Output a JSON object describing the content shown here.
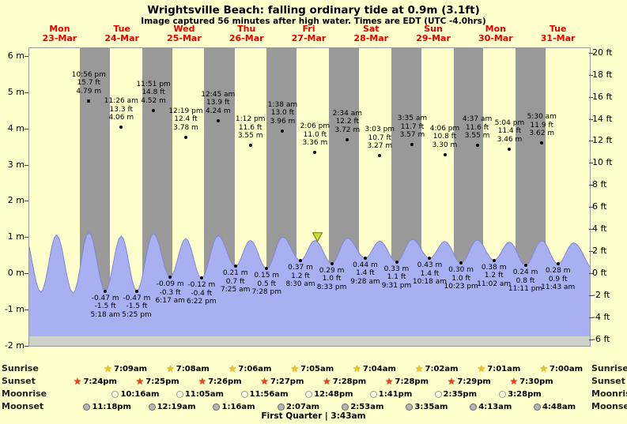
{
  "title": "Wrightsville Beach: falling  ordinary tide at 0.9m (3.1ft)",
  "subtitle": "Image captured 56 minutes after high water. Times are EDT (UTC -4.0hrs)",
  "days": [
    {
      "name": "Mon",
      "date": "23-Mar"
    },
    {
      "name": "Tue",
      "date": "24-Mar"
    },
    {
      "name": "Wed",
      "date": "25-Mar"
    },
    {
      "name": "Thu",
      "date": "26-Mar"
    },
    {
      "name": "Fri",
      "date": "27-Mar"
    },
    {
      "name": "Sat",
      "date": "28-Mar"
    },
    {
      "name": "Sun",
      "date": "29-Mar"
    },
    {
      "name": "Mon",
      "date": "30-Mar"
    },
    {
      "name": "Tue",
      "date": "31-Mar"
    }
  ],
  "axes": {
    "left_unit": "m",
    "right_unit": "ft",
    "left_ticks": [
      {
        "label": "6 m",
        "v": 6
      },
      {
        "label": "5 m",
        "v": 5
      },
      {
        "label": "4 m",
        "v": 4
      },
      {
        "label": "3 m",
        "v": 3
      },
      {
        "label": "2 m",
        "v": 2
      },
      {
        "label": "1 m",
        "v": 1
      },
      {
        "label": "0 m",
        "v": 0
      },
      {
        "label": "-1 m",
        "v": -1
      },
      {
        "label": "-2 m",
        "v": -2
      }
    ],
    "right_ticks": [
      {
        "label": "20 ft",
        "v": 20
      },
      {
        "label": "18 ft",
        "v": 18
      },
      {
        "label": "16 ft",
        "v": 16
      },
      {
        "label": "14 ft",
        "v": 14
      },
      {
        "label": "12 ft",
        "v": 12
      },
      {
        "label": "10 ft",
        "v": 10
      },
      {
        "label": "8 ft",
        "v": 8
      },
      {
        "label": "6 ft",
        "v": 6
      },
      {
        "label": "4 ft",
        "v": 4
      },
      {
        "label": "2 ft",
        "v": 2
      },
      {
        "label": "0 ft",
        "v": 0
      },
      {
        "label": "-2 ft",
        "v": -2
      },
      {
        "label": "-4 ft",
        "v": -4
      },
      {
        "label": "-6 ft",
        "v": -6
      }
    ]
  },
  "chart_data": {
    "type": "area",
    "title": "Wrightsville Beach tide curve, 23-Mar to 31-Mar",
    "ylim_m": [
      -2,
      6
    ],
    "ylim_ft": [
      -6,
      20
    ],
    "x_days": [
      "Mon 23-Mar",
      "Tue 24-Mar",
      "Wed 25-Mar",
      "Thu 26-Mar",
      "Fri 27-Mar",
      "Sat 28-Mar",
      "Sun 29-Mar",
      "Mon 30-Mar",
      "Tue 31-Mar"
    ],
    "high_tide_markers": [
      {
        "day": 0,
        "time": "10:56 pm",
        "ft": "15.7 ft",
        "m": "4.79 m",
        "v": 4.79
      },
      {
        "day": 1,
        "time": "11:26 am",
        "ft": "13.3 ft",
        "m": "4.06 m",
        "v": 4.06
      },
      {
        "day": 1,
        "time": "11:51 pm",
        "ft": "14.8 ft",
        "m": "4.52 m",
        "v": 4.52
      },
      {
        "day": 2,
        "time": "12:19 pm",
        "ft": "12.4 ft",
        "m": "3.78 m",
        "v": 3.78
      },
      {
        "day": 3,
        "time": "12:45 am",
        "ft": "13.9 ft",
        "m": "4.24 m",
        "v": 4.24
      },
      {
        "day": 3,
        "time": "1:12 pm",
        "ft": "11.6 ft",
        "m": "3.55 m",
        "v": 3.55
      },
      {
        "day": 4,
        "time": "1:38 am",
        "ft": "13.0 ft",
        "m": "3.96 m",
        "v": 3.96
      },
      {
        "day": 4,
        "time": "2:06 pm",
        "ft": "11.0 ft",
        "m": "3.36 m",
        "v": 3.36
      },
      {
        "day": 5,
        "time": "2:34 am",
        "ft": "12.2 ft",
        "m": "3.72 m",
        "v": 3.72
      },
      {
        "day": 5,
        "time": "3:03 pm",
        "ft": "10.7 ft",
        "m": "3.27 m",
        "v": 3.27
      },
      {
        "day": 6,
        "time": "3:35 am",
        "ft": "11.7 ft",
        "m": "3.57 m",
        "v": 3.57
      },
      {
        "day": 6,
        "time": "4:06 pm",
        "ft": "10.8 ft",
        "m": "3.30 m",
        "v": 3.3
      },
      {
        "day": 7,
        "time": "4:37 am",
        "ft": "11.6 ft",
        "m": "3.55 m",
        "v": 3.55
      },
      {
        "day": 7,
        "time": "5:04 pm",
        "ft": "11.4 ft",
        "m": "3.46 m",
        "v": 3.46
      },
      {
        "day": 8,
        "time": "5:30 am",
        "ft": "11.9 ft",
        "m": "3.62 m",
        "v": 3.62
      }
    ],
    "low_tide_markers": [
      {
        "day": 1,
        "m": "-0.47 m",
        "ft": "-1.5 ft",
        "time": "5:18 am",
        "v": -0.47
      },
      {
        "day": 1,
        "m": "-0.47 m",
        "ft": "-1.5 ft",
        "time": "5:25 pm",
        "v": -0.47
      },
      {
        "day": 2,
        "m": "-0.09 m",
        "ft": "-0.3 ft",
        "time": "6:17 am",
        "v": -0.09
      },
      {
        "day": 2,
        "m": "-0.12 m",
        "ft": "-0.4 ft",
        "time": "6:22 pm",
        "v": -0.12
      },
      {
        "day": 3,
        "m": "0.21 m",
        "ft": "0.7 ft",
        "time": "7:25 am",
        "v": 0.21
      },
      {
        "day": 3,
        "m": "0.15 m",
        "ft": "0.5 ft",
        "time": "7:28 pm",
        "v": 0.15
      },
      {
        "day": 4,
        "m": "0.37 m",
        "ft": "1.2 ft",
        "time": "8:30 am",
        "v": 0.37
      },
      {
        "day": 4,
        "m": "0.29 m",
        "ft": "1.0 ft",
        "time": "8:33 pm",
        "v": 0.29
      },
      {
        "day": 5,
        "m": "0.44 m",
        "ft": "1.4 ft",
        "time": "9:28 am",
        "v": 0.44
      },
      {
        "day": 5,
        "m": "0.33 m",
        "ft": "1.1 ft",
        "time": "9:31 pm",
        "v": 0.33
      },
      {
        "day": 6,
        "m": "0.43 m",
        "ft": "1.4 ft",
        "time": "10:18 am",
        "v": 0.43
      },
      {
        "day": 6,
        "m": "0.30 m",
        "ft": "1.0 ft",
        "time": "10:23 pm",
        "v": 0.3
      },
      {
        "day": 7,
        "m": "0.38 m",
        "ft": "1.2 ft",
        "time": "11:02 am",
        "v": 0.38
      },
      {
        "day": 7,
        "m": "0.24 m",
        "ft": "0.8 ft",
        "time": "11:11 pm",
        "v": 0.24
      },
      {
        "day": 8,
        "m": "0.28 m",
        "ft": "0.9 ft",
        "time": "11:43 am",
        "v": 0.28
      }
    ],
    "curve_extremes": [
      {
        "t": -0.08,
        "v": 1.05
      },
      {
        "t": 0.186,
        "v": -0.5
      },
      {
        "t": 0.438,
        "v": 1.08
      },
      {
        "t": 0.703,
        "v": -0.53
      },
      {
        "t": 0.956,
        "v": 1.15
      },
      {
        "t": 1.221,
        "v": -0.47
      },
      {
        "t": 1.476,
        "v": 1.05
      },
      {
        "t": 1.726,
        "v": -0.47
      },
      {
        "t": 1.994,
        "v": 1.12
      },
      {
        "t": 2.262,
        "v": -0.09
      },
      {
        "t": 2.513,
        "v": 0.98
      },
      {
        "t": 2.765,
        "v": -0.12
      },
      {
        "t": 3.031,
        "v": 1.06
      },
      {
        "t": 3.309,
        "v": 0.21
      },
      {
        "t": 3.55,
        "v": 0.93
      },
      {
        "t": 3.811,
        "v": 0.15
      },
      {
        "t": 4.068,
        "v": 1.02
      },
      {
        "t": 4.354,
        "v": 0.37
      },
      {
        "t": 4.588,
        "v": 0.93
      },
      {
        "t": 4.856,
        "v": 0.29
      },
      {
        "t": 5.107,
        "v": 0.99
      },
      {
        "t": 5.394,
        "v": 0.44
      },
      {
        "t": 5.627,
        "v": 0.91
      },
      {
        "t": 5.897,
        "v": 0.33
      },
      {
        "t": 6.149,
        "v": 0.96
      },
      {
        "t": 6.429,
        "v": 0.43
      },
      {
        "t": 6.671,
        "v": 0.9
      },
      {
        "t": 6.933,
        "v": 0.3
      },
      {
        "t": 7.192,
        "v": 0.94
      },
      {
        "t": 7.46,
        "v": 0.38
      },
      {
        "t": 7.711,
        "v": 0.88
      },
      {
        "t": 7.966,
        "v": 0.24
      },
      {
        "t": 8.229,
        "v": 0.92
      },
      {
        "t": 8.488,
        "v": 0.28
      },
      {
        "t": 8.74,
        "v": 0.86
      },
      {
        "t": 9.08,
        "v": 0.1
      }
    ],
    "current_marker": {
      "day": 4,
      "time": "3:02 pm",
      "value": 0.9,
      "note": "56 minutes after high water"
    }
  },
  "almanac": {
    "sunrise": {
      "label": "Sunrise",
      "events": [
        {
          "day": 1,
          "time": "7:09am"
        },
        {
          "day": 2,
          "time": "7:08am"
        },
        {
          "day": 3,
          "time": "7:06am"
        },
        {
          "day": 4,
          "time": "7:05am"
        },
        {
          "day": 5,
          "time": "7:04am"
        },
        {
          "day": 6,
          "time": "7:02am"
        },
        {
          "day": 7,
          "time": "7:01am"
        },
        {
          "day": 8,
          "time": "7:00am"
        }
      ]
    },
    "sunset": {
      "label": "Sunset",
      "events": [
        {
          "day": 0,
          "time": "7:24pm"
        },
        {
          "day": 1,
          "time": "7:25pm"
        },
        {
          "day": 2,
          "time": "7:26pm"
        },
        {
          "day": 3,
          "time": "7:27pm"
        },
        {
          "day": 4,
          "time": "7:28pm"
        },
        {
          "day": 5,
          "time": "7:28pm"
        },
        {
          "day": 6,
          "time": "7:29pm"
        },
        {
          "day": 7,
          "time": "7:30pm"
        }
      ]
    },
    "moonrise": {
      "label": "Moonrise",
      "events": [
        {
          "day": 1,
          "time": "10:16am"
        },
        {
          "day": 2,
          "time": "11:05am"
        },
        {
          "day": 3,
          "time": "11:56am"
        },
        {
          "day": 4,
          "time": "12:48pm"
        },
        {
          "day": 5,
          "time": "1:41pm"
        },
        {
          "day": 6,
          "time": "2:35pm"
        },
        {
          "day": 7,
          "time": "3:28pm"
        }
      ]
    },
    "moonset": {
      "label": "Moonset",
      "events": [
        {
          "day": 0,
          "time": "11:18pm"
        },
        {
          "day": 2,
          "time": "12:19am"
        },
        {
          "day": 3,
          "time": "1:16am"
        },
        {
          "day": 4,
          "time": "2:07am"
        },
        {
          "day": 5,
          "time": "2:53am"
        },
        {
          "day": 6,
          "time": "3:35am"
        },
        {
          "day": 7,
          "time": "4:13am"
        },
        {
          "day": 8,
          "time": "4:48am"
        }
      ]
    },
    "moon_phase": "First Quarter | 3:43am"
  },
  "colors": {
    "background": "#ffffcc",
    "day_band": "#ffffcc",
    "night_band": "#999999",
    "tide_fill": "#a8b0f2",
    "tide_stroke": "#7d86dd",
    "seabed": "#ccd2c8",
    "day_label": "#e60000",
    "marker_fill": "#cddc39",
    "marker_stroke": "#6b7a00",
    "sunrise_icon": "#f2c21d",
    "sunset_icon": "#e8411c",
    "moonrise_icon": "#ffffe0",
    "moonset_icon": "#b5b5b5"
  }
}
